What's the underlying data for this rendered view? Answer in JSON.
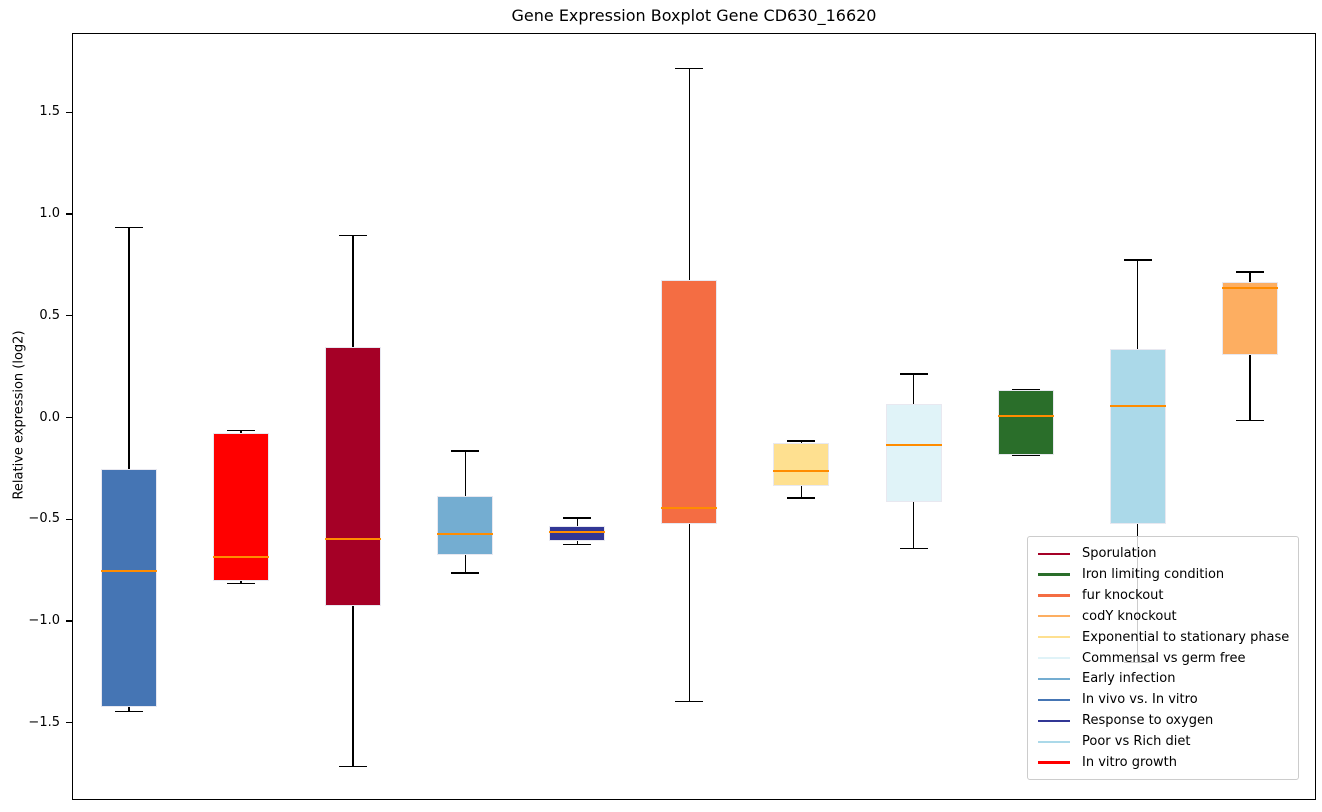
{
  "chart_data": {
    "type": "boxplot",
    "title": "Gene Expression Boxplot Gene CD630_16620",
    "ylabel": "Relative expression (log2)",
    "xlabel": "",
    "ylim": [
      -1.88,
      1.89
    ],
    "grid": false,
    "legend_position": "lower right",
    "yticks": [
      {
        "value": 1.5,
        "label": "1.5"
      },
      {
        "value": 1.0,
        "label": "1.0"
      },
      {
        "value": 0.5,
        "label": "0.5"
      },
      {
        "value": 0.0,
        "label": "0.0"
      },
      {
        "value": -0.5,
        "label": "−0.5"
      },
      {
        "value": -1.0,
        "label": "−1.0"
      },
      {
        "value": -1.5,
        "label": "−1.5"
      }
    ],
    "style_colors": {
      "median": "#FF8C00",
      "whisker": "#000000",
      "box_edge": "#E8E8F0"
    },
    "boxes": [
      {
        "name": "In vivo vs. In vitro",
        "color": "#4575B4",
        "whisker_low": -1.44,
        "q1": -1.42,
        "median": -0.75,
        "q3": -0.25,
        "whisker_high": 0.94
      },
      {
        "name": "In vitro growth",
        "color": "#FF0000",
        "whisker_low": -0.81,
        "q1": -0.8,
        "median": -0.68,
        "q3": -0.07,
        "whisker_high": -0.06
      },
      {
        "name": "Sporulation",
        "color": "#A50026",
        "whisker_low": -1.71,
        "q1": -0.92,
        "median": -0.59,
        "q3": 0.35,
        "whisker_high": 0.9
      },
      {
        "name": "Early infection",
        "color": "#74ADD1",
        "whisker_low": -0.76,
        "q1": -0.67,
        "median": -0.57,
        "q3": -0.38,
        "whisker_high": -0.16
      },
      {
        "name": "Response to oxygen",
        "color": "#313695",
        "whisker_low": -0.62,
        "q1": -0.6,
        "median": -0.56,
        "q3": -0.53,
        "whisker_high": -0.49
      },
      {
        "name": "fur knockout",
        "color": "#F46D43",
        "whisker_low": -1.39,
        "q1": -0.52,
        "median": -0.44,
        "q3": 0.68,
        "whisker_high": 1.72
      },
      {
        "name": "Exponential to stationary phase",
        "color": "#FEE090",
        "whisker_low": -0.39,
        "q1": -0.33,
        "median": -0.26,
        "q3": -0.12,
        "whisker_high": -0.11
      },
      {
        "name": "Commensal vs germ free",
        "color": "#E0F3F8",
        "whisker_low": -0.64,
        "q1": -0.41,
        "median": -0.13,
        "q3": 0.07,
        "whisker_high": 0.22
      },
      {
        "name": "Iron limiting condition",
        "color": "#2A6E2A",
        "whisker_low": -0.18,
        "q1": -0.18,
        "median": 0.01,
        "q3": 0.14,
        "whisker_high": 0.14
      },
      {
        "name": "Poor vs Rich diet",
        "color": "#ABD9E9",
        "whisker_low": -1.2,
        "q1": -0.52,
        "median": 0.06,
        "q3": 0.34,
        "whisker_high": 0.78
      },
      {
        "name": "codY knockout",
        "color": "#FDAE61",
        "whisker_low": -0.01,
        "q1": 0.31,
        "median": 0.64,
        "q3": 0.67,
        "whisker_high": 0.72
      }
    ],
    "legend": [
      {
        "label": "Sporulation",
        "color": "#A50026"
      },
      {
        "label": "Iron limiting condition",
        "color": "#2A6E2A"
      },
      {
        "label": "fur knockout",
        "color": "#F46D43"
      },
      {
        "label": "codY knockout",
        "color": "#FDAE61"
      },
      {
        "label": "Exponential to stationary phase",
        "color": "#FEE090"
      },
      {
        "label": "Commensal vs germ free",
        "color": "#E0F3F8"
      },
      {
        "label": "Early infection",
        "color": "#74ADD1"
      },
      {
        "label": "In vivo vs. In vitro",
        "color": "#4575B4"
      },
      {
        "label": "Response to oxygen",
        "color": "#313695"
      },
      {
        "label": "Poor vs Rich diet",
        "color": "#ABD9E9"
      },
      {
        "label": "In vitro growth",
        "color": "#FF0000"
      }
    ]
  }
}
